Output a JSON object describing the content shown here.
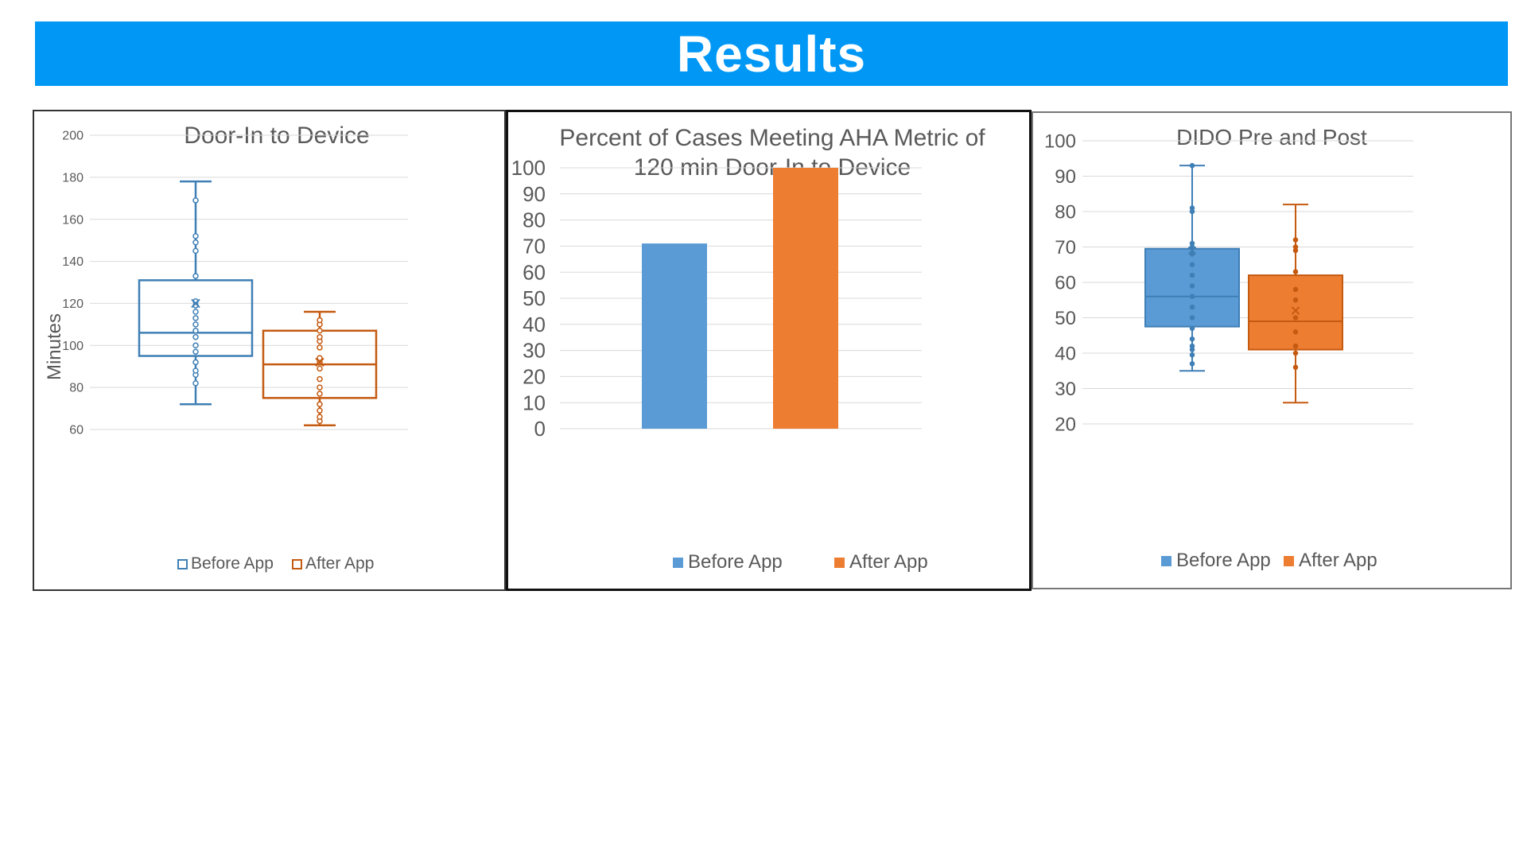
{
  "header": {
    "title": "Results"
  },
  "colors": {
    "banner": "#0097f5",
    "before": "#5b9bd5",
    "after": "#ed7d31",
    "before_outline": "#3f7fb5",
    "after_outline": "#c55a11"
  },
  "chart_data": [
    {
      "type": "box",
      "title": "Door-In to Device",
      "ylabel": "Minutes",
      "ylim": [
        60,
        200
      ],
      "yticks": [
        60,
        80,
        100,
        120,
        140,
        160,
        180,
        200
      ],
      "grid": true,
      "legend": "bottom",
      "fill": "none",
      "series": [
        {
          "name": "Before App",
          "whisker_low": 72,
          "q1": 95,
          "median": 106,
          "q3": 131,
          "whisker_high": 178,
          "mean": 120,
          "points": [
            82,
            86,
            88,
            92,
            97,
            100,
            104,
            107,
            110,
            113,
            116,
            119,
            121,
            133,
            145,
            149,
            152,
            169
          ]
        },
        {
          "name": "After App",
          "whisker_low": 62,
          "q1": 75,
          "median": 91,
          "q3": 107,
          "whisker_high": 116,
          "mean": 92,
          "points": [
            64,
            66,
            69,
            72,
            77,
            80,
            84,
            89,
            92,
            94,
            99,
            102,
            104,
            107,
            110,
            112
          ]
        }
      ]
    },
    {
      "type": "bar",
      "title": "Percent of Cases Meeting AHA Metric of 120 min Door-In to Device",
      "categories": [
        "Before App",
        "After App"
      ],
      "values": [
        71,
        100
      ],
      "ylim": [
        0,
        100
      ],
      "yticks": [
        0,
        10,
        20,
        30,
        40,
        50,
        60,
        70,
        80,
        90,
        100
      ],
      "grid": true,
      "legend": "bottom"
    },
    {
      "type": "box",
      "title": "DIDO Pre and Post",
      "ylim": [
        20,
        100
      ],
      "yticks": [
        20,
        30,
        40,
        50,
        60,
        70,
        80,
        90,
        100
      ],
      "grid": true,
      "legend": "bottom",
      "fill": "solid",
      "series": [
        {
          "name": "Before App",
          "whisker_low": 35,
          "q1": 47.5,
          "median": 56,
          "q3": 69.5,
          "whisker_high": 93,
          "mean": 69,
          "points": [
            37,
            39.5,
            41,
            42,
            44,
            47,
            50,
            53,
            56,
            59,
            62,
            65,
            68,
            70,
            71,
            80,
            81,
            93
          ]
        },
        {
          "name": "After App",
          "whisker_low": 26,
          "q1": 41,
          "median": 49,
          "q3": 62,
          "whisker_high": 82,
          "mean": 52,
          "points": [
            36,
            40,
            42,
            46,
            50,
            55,
            58,
            63,
            69,
            70,
            72
          ]
        }
      ]
    }
  ]
}
